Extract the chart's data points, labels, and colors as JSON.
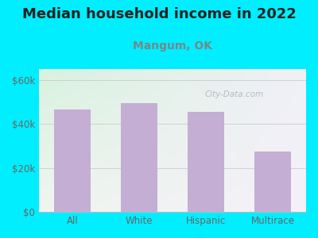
{
  "title": "Median household income in 2022",
  "subtitle": "Mangum, OK",
  "categories": [
    "All",
    "White",
    "Hispanic",
    "Multirace"
  ],
  "values": [
    46500,
    49500,
    45500,
    27500
  ],
  "bar_color": "#c4aed4",
  "background_outer": "#00eeff",
  "title_fontsize": 13,
  "subtitle_fontsize": 10,
  "title_color": "#222222",
  "subtitle_color": "#778888",
  "tick_label_color": "#666666",
  "yticks": [
    0,
    20000,
    40000,
    60000
  ],
  "ytick_labels": [
    "$0",
    "$20k",
    "$40k",
    "$60k"
  ],
  "ylim": [
    0,
    65000
  ],
  "watermark": "City-Data.com"
}
